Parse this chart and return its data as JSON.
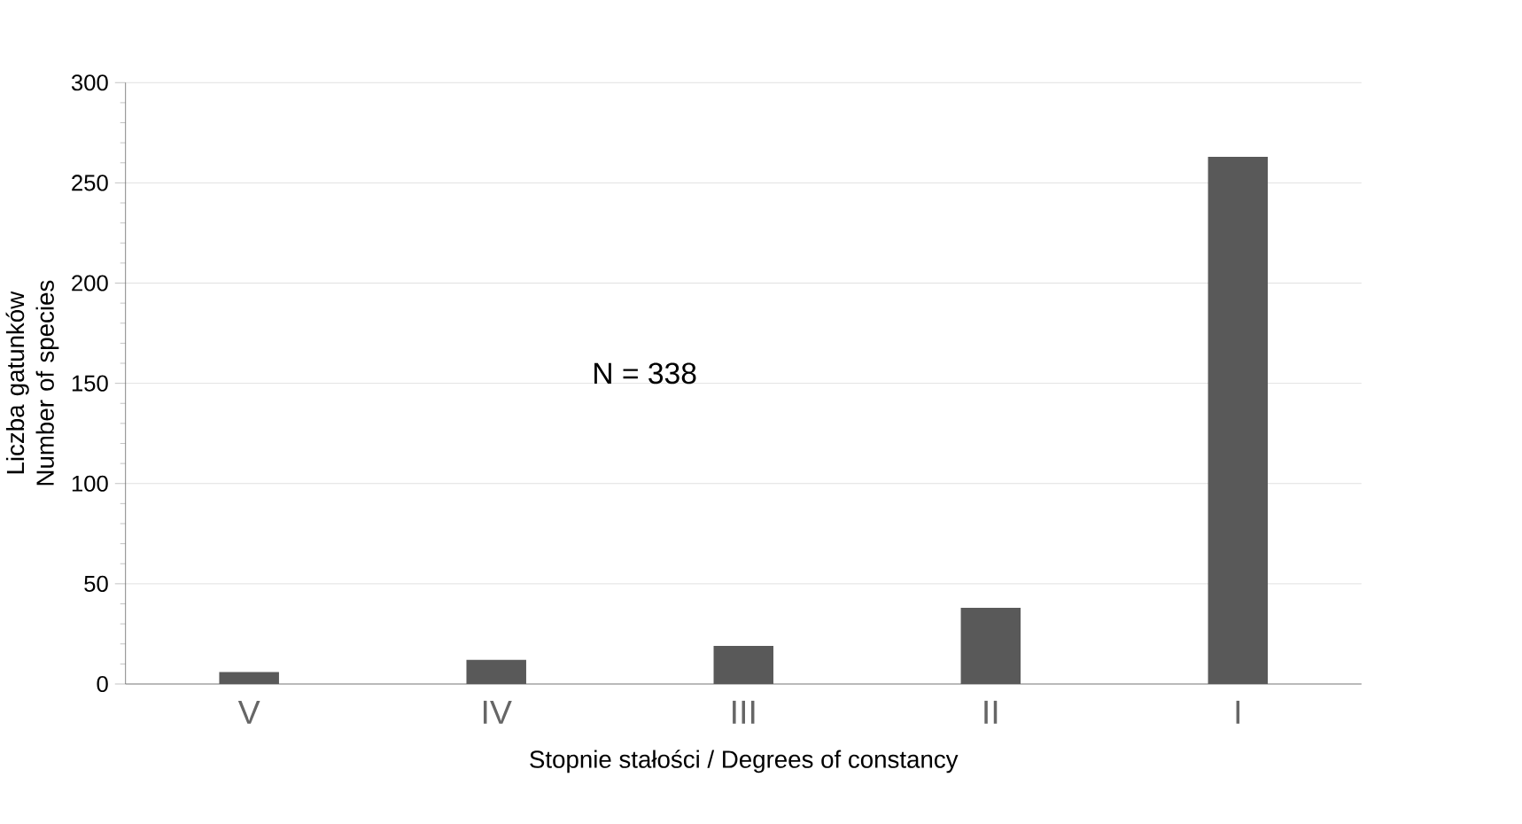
{
  "chart_data": {
    "type": "bar",
    "xlabel": "Stopnie stałości / Degrees of constancy",
    "ylabel": "Liczba gatunków Number of species",
    "categories": [
      "V",
      "IV",
      "III",
      "II",
      "I"
    ],
    "values": [
      6,
      12,
      19,
      38,
      263
    ],
    "color": "#595959",
    "ylim": [
      0,
      300
    ],
    "yticks": [
      0,
      50,
      100,
      150,
      200,
      250,
      300
    ],
    "grid": "y",
    "annotations": [
      "N = 338"
    ]
  }
}
